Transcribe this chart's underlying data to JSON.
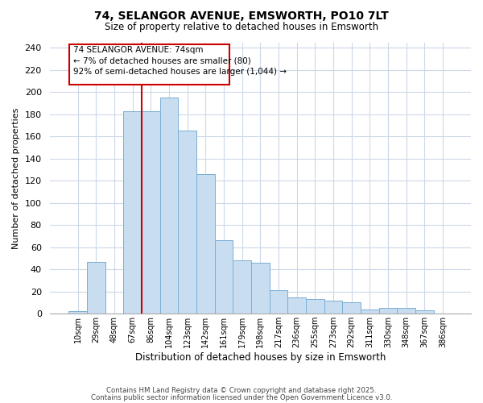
{
  "title": "74, SELANGOR AVENUE, EMSWORTH, PO10 7LT",
  "subtitle": "Size of property relative to detached houses in Emsworth",
  "xlabel": "Distribution of detached houses by size in Emsworth",
  "ylabel": "Number of detached properties",
  "categories": [
    "10sqm",
    "29sqm",
    "48sqm",
    "67sqm",
    "86sqm",
    "104sqm",
    "123sqm",
    "142sqm",
    "161sqm",
    "179sqm",
    "198sqm",
    "217sqm",
    "236sqm",
    "255sqm",
    "273sqm",
    "292sqm",
    "311sqm",
    "330sqm",
    "348sqm",
    "367sqm",
    "386sqm"
  ],
  "values": [
    2,
    47,
    0,
    183,
    183,
    195,
    165,
    126,
    66,
    48,
    46,
    21,
    15,
    13,
    12,
    10,
    4,
    5,
    5,
    3,
    0
  ],
  "bar_color": "#c9ddf0",
  "bar_edge_color": "#7aafd4",
  "vline_x_index": 4,
  "vline_color": "#cc0000",
  "annotation_line1": "74 SELANGOR AVENUE: 74sqm",
  "annotation_line2": "← 7% of detached houses are smaller (80)",
  "annotation_line3": "92% of semi-detached houses are larger (1,044) →",
  "annotation_box_color": "#ffffff",
  "annotation_box_edge": "#cc0000",
  "ylim": [
    0,
    245
  ],
  "yticks": [
    0,
    20,
    40,
    60,
    80,
    100,
    120,
    140,
    160,
    180,
    200,
    220,
    240
  ],
  "footer1": "Contains HM Land Registry data © Crown copyright and database right 2025.",
  "footer2": "Contains public sector information licensed under the Open Government Licence v3.0.",
  "background_color": "#ffffff",
  "grid_color": "#ccd8e8"
}
